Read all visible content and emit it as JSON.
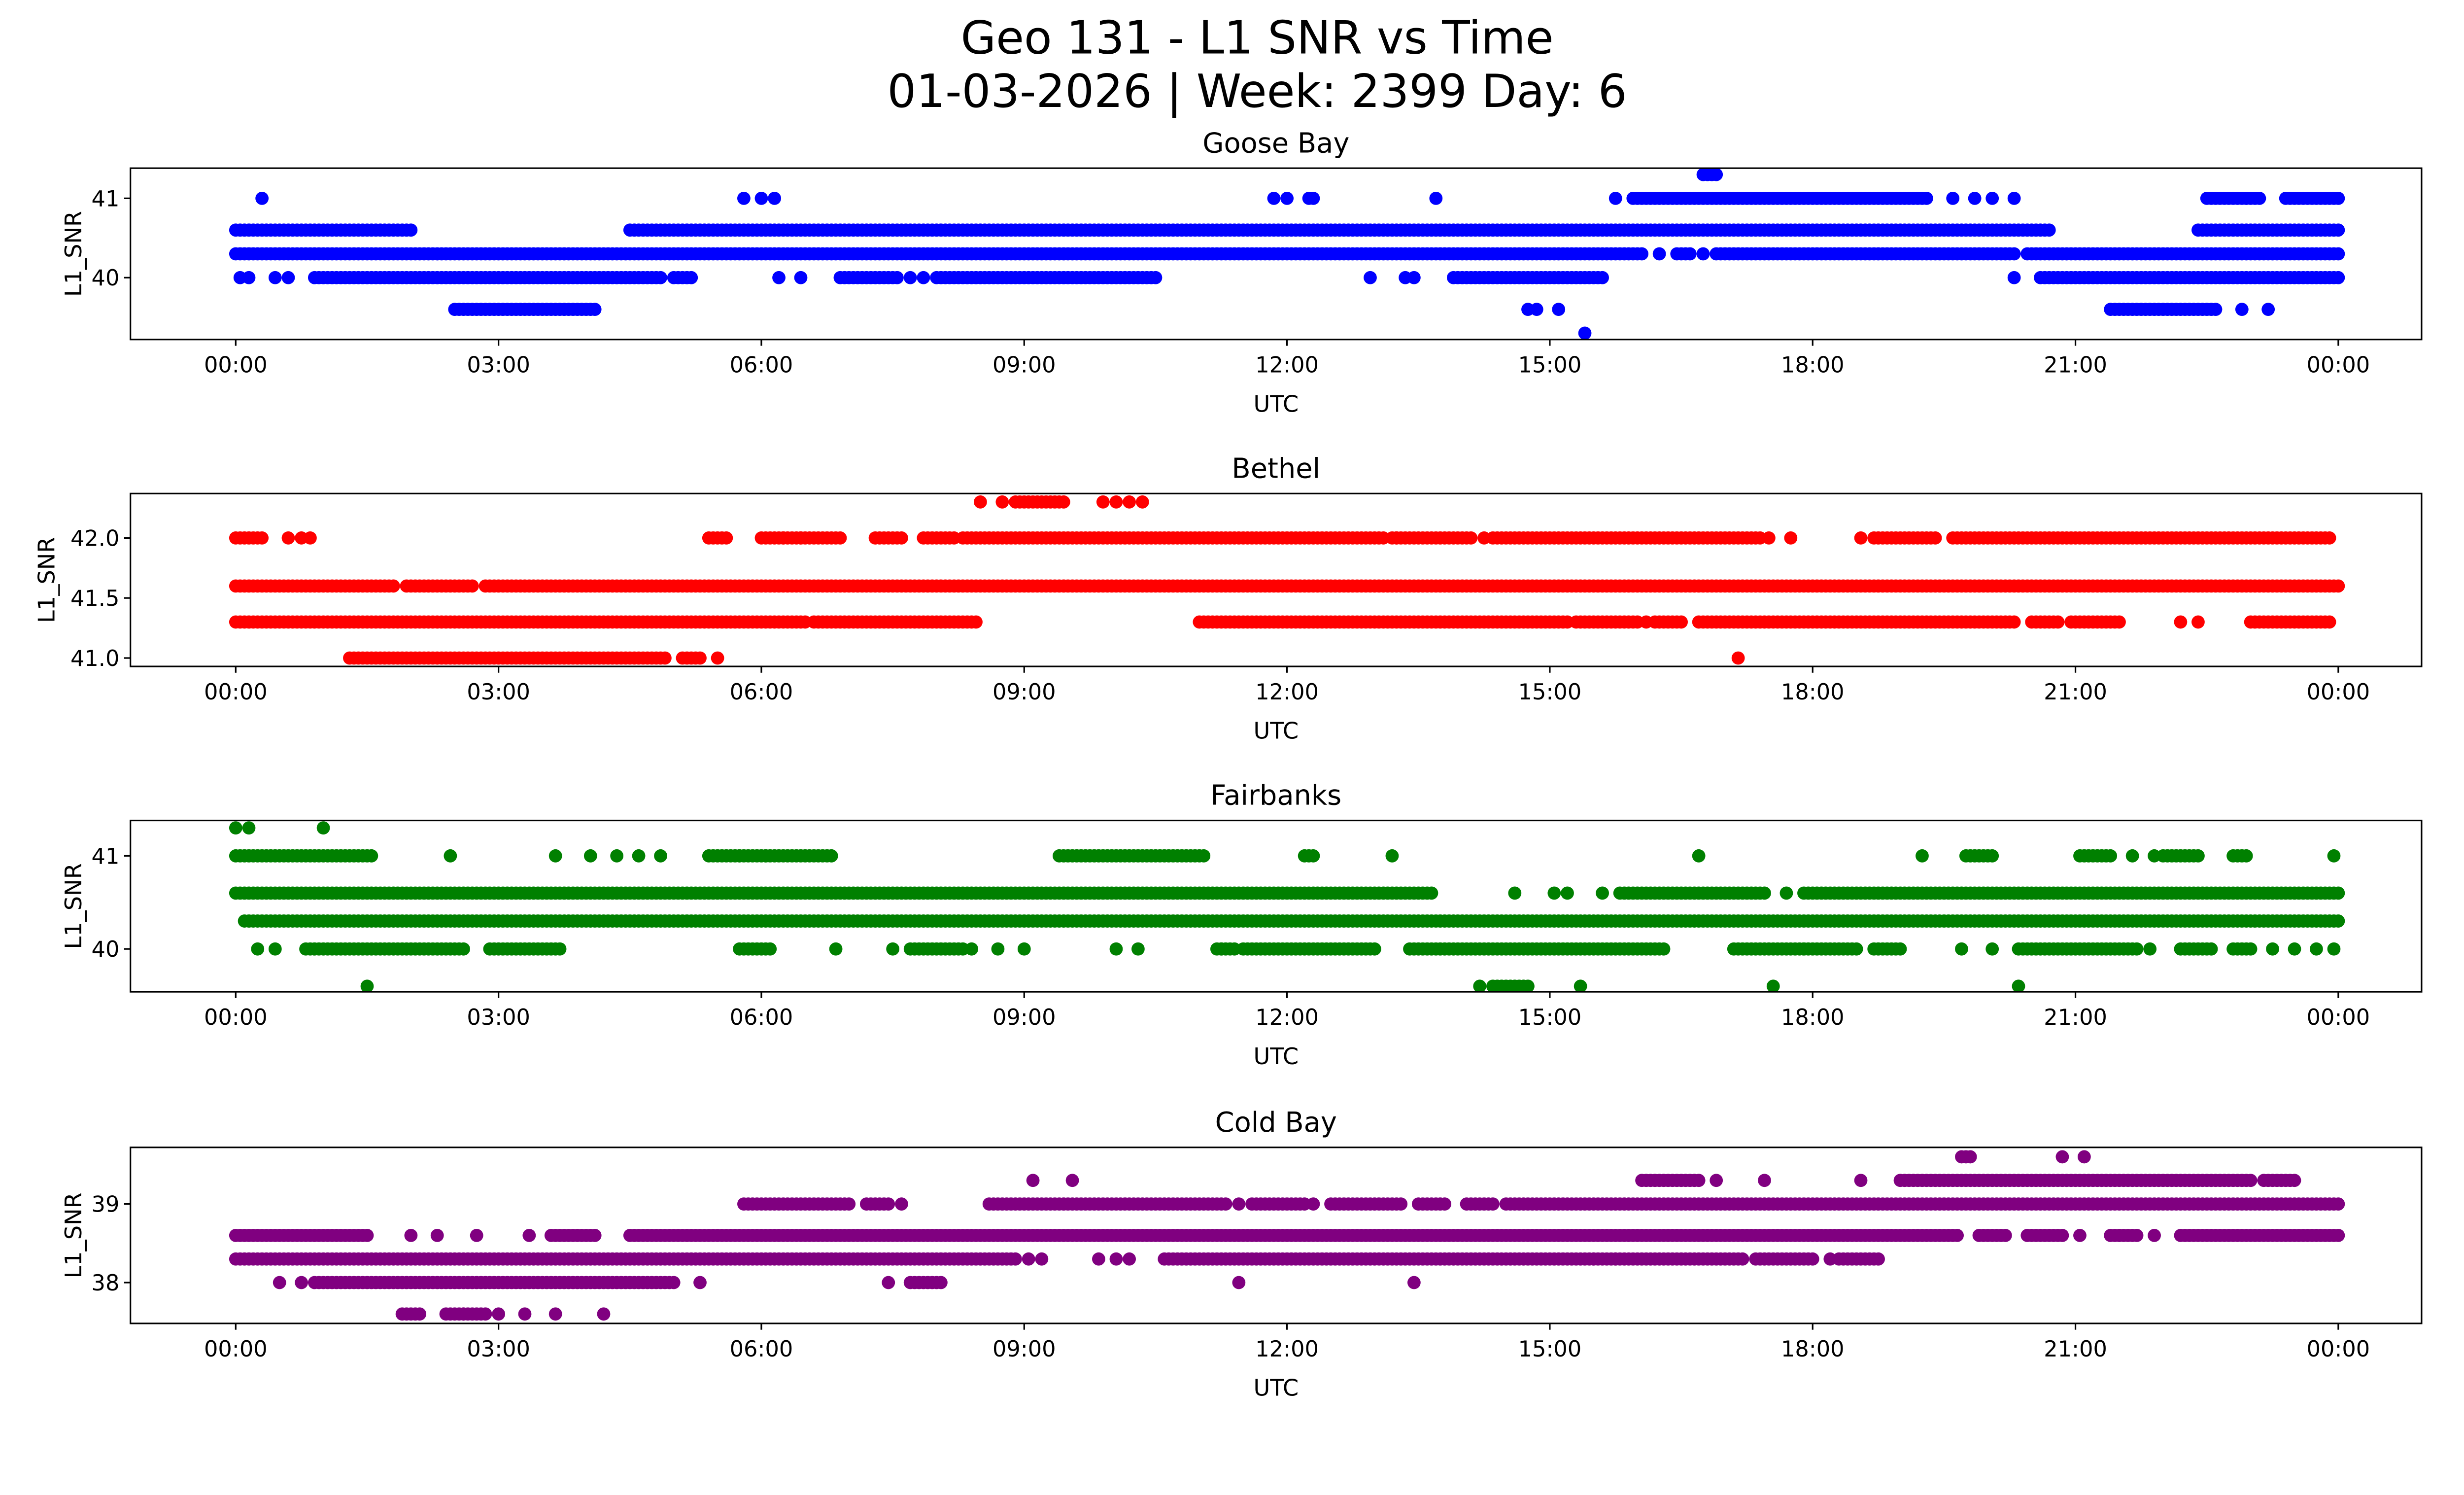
{
  "chart_data": {
    "type": "scatter",
    "title_line1": "Geo 131 - L1 SNR vs Time",
    "title_line2": "01-03-2026 | Week: 2399 Day: 6",
    "x_tick_labels": [
      "00:00",
      "03:00",
      "06:00",
      "09:00",
      "12:00",
      "15:00",
      "18:00",
      "21:00",
      "00:00"
    ],
    "x_tick_hours": [
      0,
      3,
      6,
      9,
      12,
      15,
      18,
      21,
      24
    ],
    "xlabel": "UTC",
    "ylabel": "L1_SNR",
    "xlim_hours": [
      -1.2,
      25.2
    ],
    "grid": false,
    "legend": "none",
    "note": "Dense scatter; series encoded as runs [start_hour, end_hour] of near-continuous samples at each SNR level, plus isolated points [hour].",
    "subplots": [
      {
        "name": "Goose Bay",
        "color": "#0000ff",
        "ylim": [
          39.22,
          41.38
        ],
        "yticks": [
          40,
          41
        ],
        "ytick_labels": [
          "40",
          "41"
        ],
        "levels": [
          {
            "snr": 41.3,
            "runs": [
              [
                16.75,
                16.9
              ]
            ],
            "points": []
          },
          {
            "snr": 41.0,
            "runs": [
              [
                15.95,
                19.3
              ],
              [
                22.5,
                23.1
              ],
              [
                23.4,
                24.0
              ]
            ],
            "points": [
              0.3,
              5.8,
              6.0,
              6.15,
              11.85,
              12.0,
              12.25,
              12.3,
              13.7,
              15.75,
              19.6,
              19.85,
              20.05,
              20.3,
              22.95
            ]
          },
          {
            "snr": 40.6,
            "runs": [
              [
                0.0,
                0.9
              ],
              [
                0.95,
                1.6
              ],
              [
                1.65,
                2.0
              ],
              [
                4.5,
                20.7
              ],
              [
                22.4,
                24.0
              ]
            ],
            "points": []
          },
          {
            "snr": 40.3,
            "runs": [
              [
                0.0,
                16.05
              ],
              [
                16.45,
                16.6
              ],
              [
                16.9,
                20.3
              ],
              [
                20.45,
                24.0
              ]
            ],
            "points": [
              16.25,
              16.75
            ]
          },
          {
            "snr": 40.0,
            "runs": [
              [
                0.9,
                4.85
              ],
              [
                5.0,
                5.2
              ],
              [
                6.9,
                7.55
              ],
              [
                8.0,
                10.5
              ],
              [
                13.9,
                15.6
              ],
              [
                20.6,
                24.0
              ]
            ],
            "points": [
              0.05,
              0.15,
              0.45,
              0.6,
              6.2,
              6.45,
              7.7,
              7.85,
              12.95,
              13.35,
              13.45,
              20.3
            ]
          },
          {
            "snr": 39.6,
            "runs": [
              [
                2.5,
                4.1
              ],
              [
                21.4,
                22.6
              ]
            ],
            "points": [
              14.75,
              14.85,
              15.1,
              22.9,
              23.2
            ]
          },
          {
            "snr": 39.3,
            "runs": [],
            "points": [
              15.4
            ]
          }
        ]
      },
      {
        "name": "Bethel",
        "color": "#ff0000",
        "ylim": [
          40.93,
          42.37
        ],
        "yticks": [
          41.0,
          41.5,
          42.0
        ],
        "ytick_labels": [
          "41.0",
          "41.5",
          "42.0"
        ],
        "levels": [
          {
            "snr": 42.3,
            "runs": [
              [
                8.9,
                9.45
              ]
            ],
            "points": [
              8.5,
              8.75,
              9.9,
              10.05,
              10.2,
              10.35
            ]
          },
          {
            "snr": 42.0,
            "runs": [
              [
                0.0,
                0.3
              ],
              [
                5.4,
                5.6
              ],
              [
                6.0,
                6.9
              ],
              [
                7.3,
                7.6
              ],
              [
                7.85,
                8.2
              ],
              [
                8.3,
                13.1
              ],
              [
                13.2,
                14.1
              ],
              [
                14.4,
                15.9
              ],
              [
                15.95,
                16.95
              ],
              [
                17.0,
                17.4
              ],
              [
                18.7,
                19.4
              ],
              [
                19.6,
                23.9
              ]
            ],
            "points": [
              0.6,
              0.75,
              0.85,
              6.25,
              6.45,
              13.25,
              14.25,
              14.35,
              17.5,
              17.75,
              18.55
            ]
          },
          {
            "snr": 41.6,
            "runs": [
              [
                0.0,
                1.8
              ],
              [
                1.95,
                2.7
              ],
              [
                2.85,
                24.0
              ]
            ],
            "points": []
          },
          {
            "snr": 41.3,
            "runs": [
              [
                0.0,
                6.5
              ],
              [
                6.6,
                8.45
              ],
              [
                11.0,
                15.2
              ],
              [
                15.3,
                16.0
              ],
              [
                16.2,
                16.5
              ],
              [
                16.7,
                20.3
              ],
              [
                20.5,
                20.8
              ],
              [
                21.0,
                21.5
              ],
              [
                23.0,
                23.9
              ]
            ],
            "points": [
              16.1,
              20.95,
              22.2,
              22.4
            ]
          },
          {
            "snr": 41.0,
            "runs": [
              [
                1.3,
                4.9
              ],
              [
                5.1,
                5.3
              ]
            ],
            "points": [
              5.5,
              17.15
            ]
          }
        ]
      },
      {
        "name": "Fairbanks",
        "color": "#008000",
        "ylim": [
          39.54,
          41.38
        ],
        "yticks": [
          40,
          41
        ],
        "ytick_labels": [
          "40",
          "41"
        ],
        "levels": [
          {
            "snr": 41.3,
            "runs": [],
            "points": [
              0.0,
              0.15,
              1.0
            ]
          },
          {
            "snr": 41.0,
            "runs": [
              [
                0.0,
                1.55
              ],
              [
                5.4,
                6.8
              ],
              [
                9.4,
                10.8
              ],
              [
                10.85,
                11.05
              ],
              [
                12.2,
                12.3
              ],
              [
                19.75,
                20.05
              ],
              [
                21.05,
                21.4
              ],
              [
                22.0,
                22.4
              ],
              [
                22.8,
                22.95
              ]
            ],
            "points": [
              2.45,
              3.65,
              4.05,
              4.35,
              4.6,
              4.85,
              5.75,
              6.05,
              13.2,
              16.7,
              19.25,
              21.65,
              21.9,
              23.95
            ]
          },
          {
            "snr": 40.6,
            "runs": [
              [
                0.0,
                13.65
              ],
              [
                15.8,
                17.45
              ],
              [
                17.9,
                24.0
              ]
            ],
            "points": [
              14.6,
              15.05,
              15.2,
              15.6,
              17.7
            ]
          },
          {
            "snr": 40.3,
            "runs": [
              [
                0.1,
                24.0
              ]
            ],
            "points": []
          },
          {
            "snr": 40.0,
            "runs": [
              [
                0.8,
                2.6
              ],
              [
                2.9,
                3.7
              ],
              [
                5.75,
                6.1
              ],
              [
                7.7,
                8.3
              ],
              [
                11.2,
                11.4
              ],
              [
                11.5,
                13.0
              ],
              [
                13.4,
                16.3
              ],
              [
                17.1,
                18.5
              ],
              [
                18.7,
                19.0
              ],
              [
                20.4,
                21.7
              ],
              [
                22.2,
                22.55
              ],
              [
                22.8,
                23.0
              ]
            ],
            "points": [
              0.25,
              0.45,
              6.85,
              7.5,
              8.4,
              8.7,
              9.0,
              10.05,
              10.3,
              11.25,
              17.9,
              19.7,
              20.05,
              20.35,
              21.85,
              23.25,
              23.5,
              23.75,
              23.95
            ]
          },
          {
            "snr": 39.6,
            "runs": [
              [
                14.35,
                14.75
              ]
            ],
            "points": [
              1.5,
              14.2,
              15.35,
              17.55,
              20.35
            ]
          }
        ]
      },
      {
        "name": "Cold Bay",
        "color": "#800080",
        "ylim": [
          37.48,
          39.72
        ],
        "yticks": [
          38,
          39
        ],
        "ytick_labels": [
          "38",
          "39"
        ],
        "levels": [
          {
            "snr": 39.6,
            "runs": [
              [
                19.7,
                19.8
              ]
            ],
            "points": [
              20.85,
              21.1
            ]
          },
          {
            "snr": 39.3,
            "runs": [
              [
                16.05,
                16.7
              ],
              [
                19.0,
                23.0
              ],
              [
                23.15,
                23.5
              ]
            ],
            "points": [
              9.1,
              9.55,
              16.9,
              17.45,
              18.55
            ]
          },
          {
            "snr": 39.0,
            "runs": [
              [
                5.8,
                7.0
              ],
              [
                7.2,
                7.45
              ],
              [
                8.6,
                11.3
              ],
              [
                11.6,
                12.2
              ],
              [
                12.5,
                13.3
              ],
              [
                13.5,
                13.8
              ],
              [
                14.05,
                14.35
              ],
              [
                14.5,
                24.0
              ]
            ],
            "points": [
              7.6,
              11.45,
              12.3
            ]
          },
          {
            "snr": 38.6,
            "runs": [
              [
                0.0,
                1.5
              ],
              [
                3.6,
                4.1
              ],
              [
                4.5,
                19.65
              ],
              [
                19.9,
                20.2
              ],
              [
                20.45,
                20.85
              ],
              [
                21.4,
                21.7
              ],
              [
                22.2,
                24.0
              ]
            ],
            "points": [
              2.0,
              2.3,
              2.75,
              3.35,
              21.05,
              21.5,
              21.9
            ]
          },
          {
            "snr": 38.3,
            "runs": [
              [
                0.0,
                8.9
              ],
              [
                10.6,
                17.2
              ],
              [
                17.35,
                18.0
              ],
              [
                18.3,
                18.75
              ]
            ],
            "points": [
              9.05,
              9.2,
              9.85,
              10.05,
              10.2,
              15.5,
              15.75,
              18.2
            ]
          },
          {
            "snr": 38.0,
            "runs": [
              [
                0.9,
                5.0
              ],
              [
                7.7,
                8.05
              ]
            ],
            "points": [
              0.5,
              0.75,
              5.3,
              7.45,
              11.45,
              13.45
            ]
          },
          {
            "snr": 37.6,
            "runs": [
              [
                1.9,
                2.1
              ],
              [
                2.4,
                2.85
              ]
            ],
            "points": [
              3.0,
              3.3,
              3.65,
              4.2,
              2.6
            ]
          }
        ]
      }
    ]
  }
}
